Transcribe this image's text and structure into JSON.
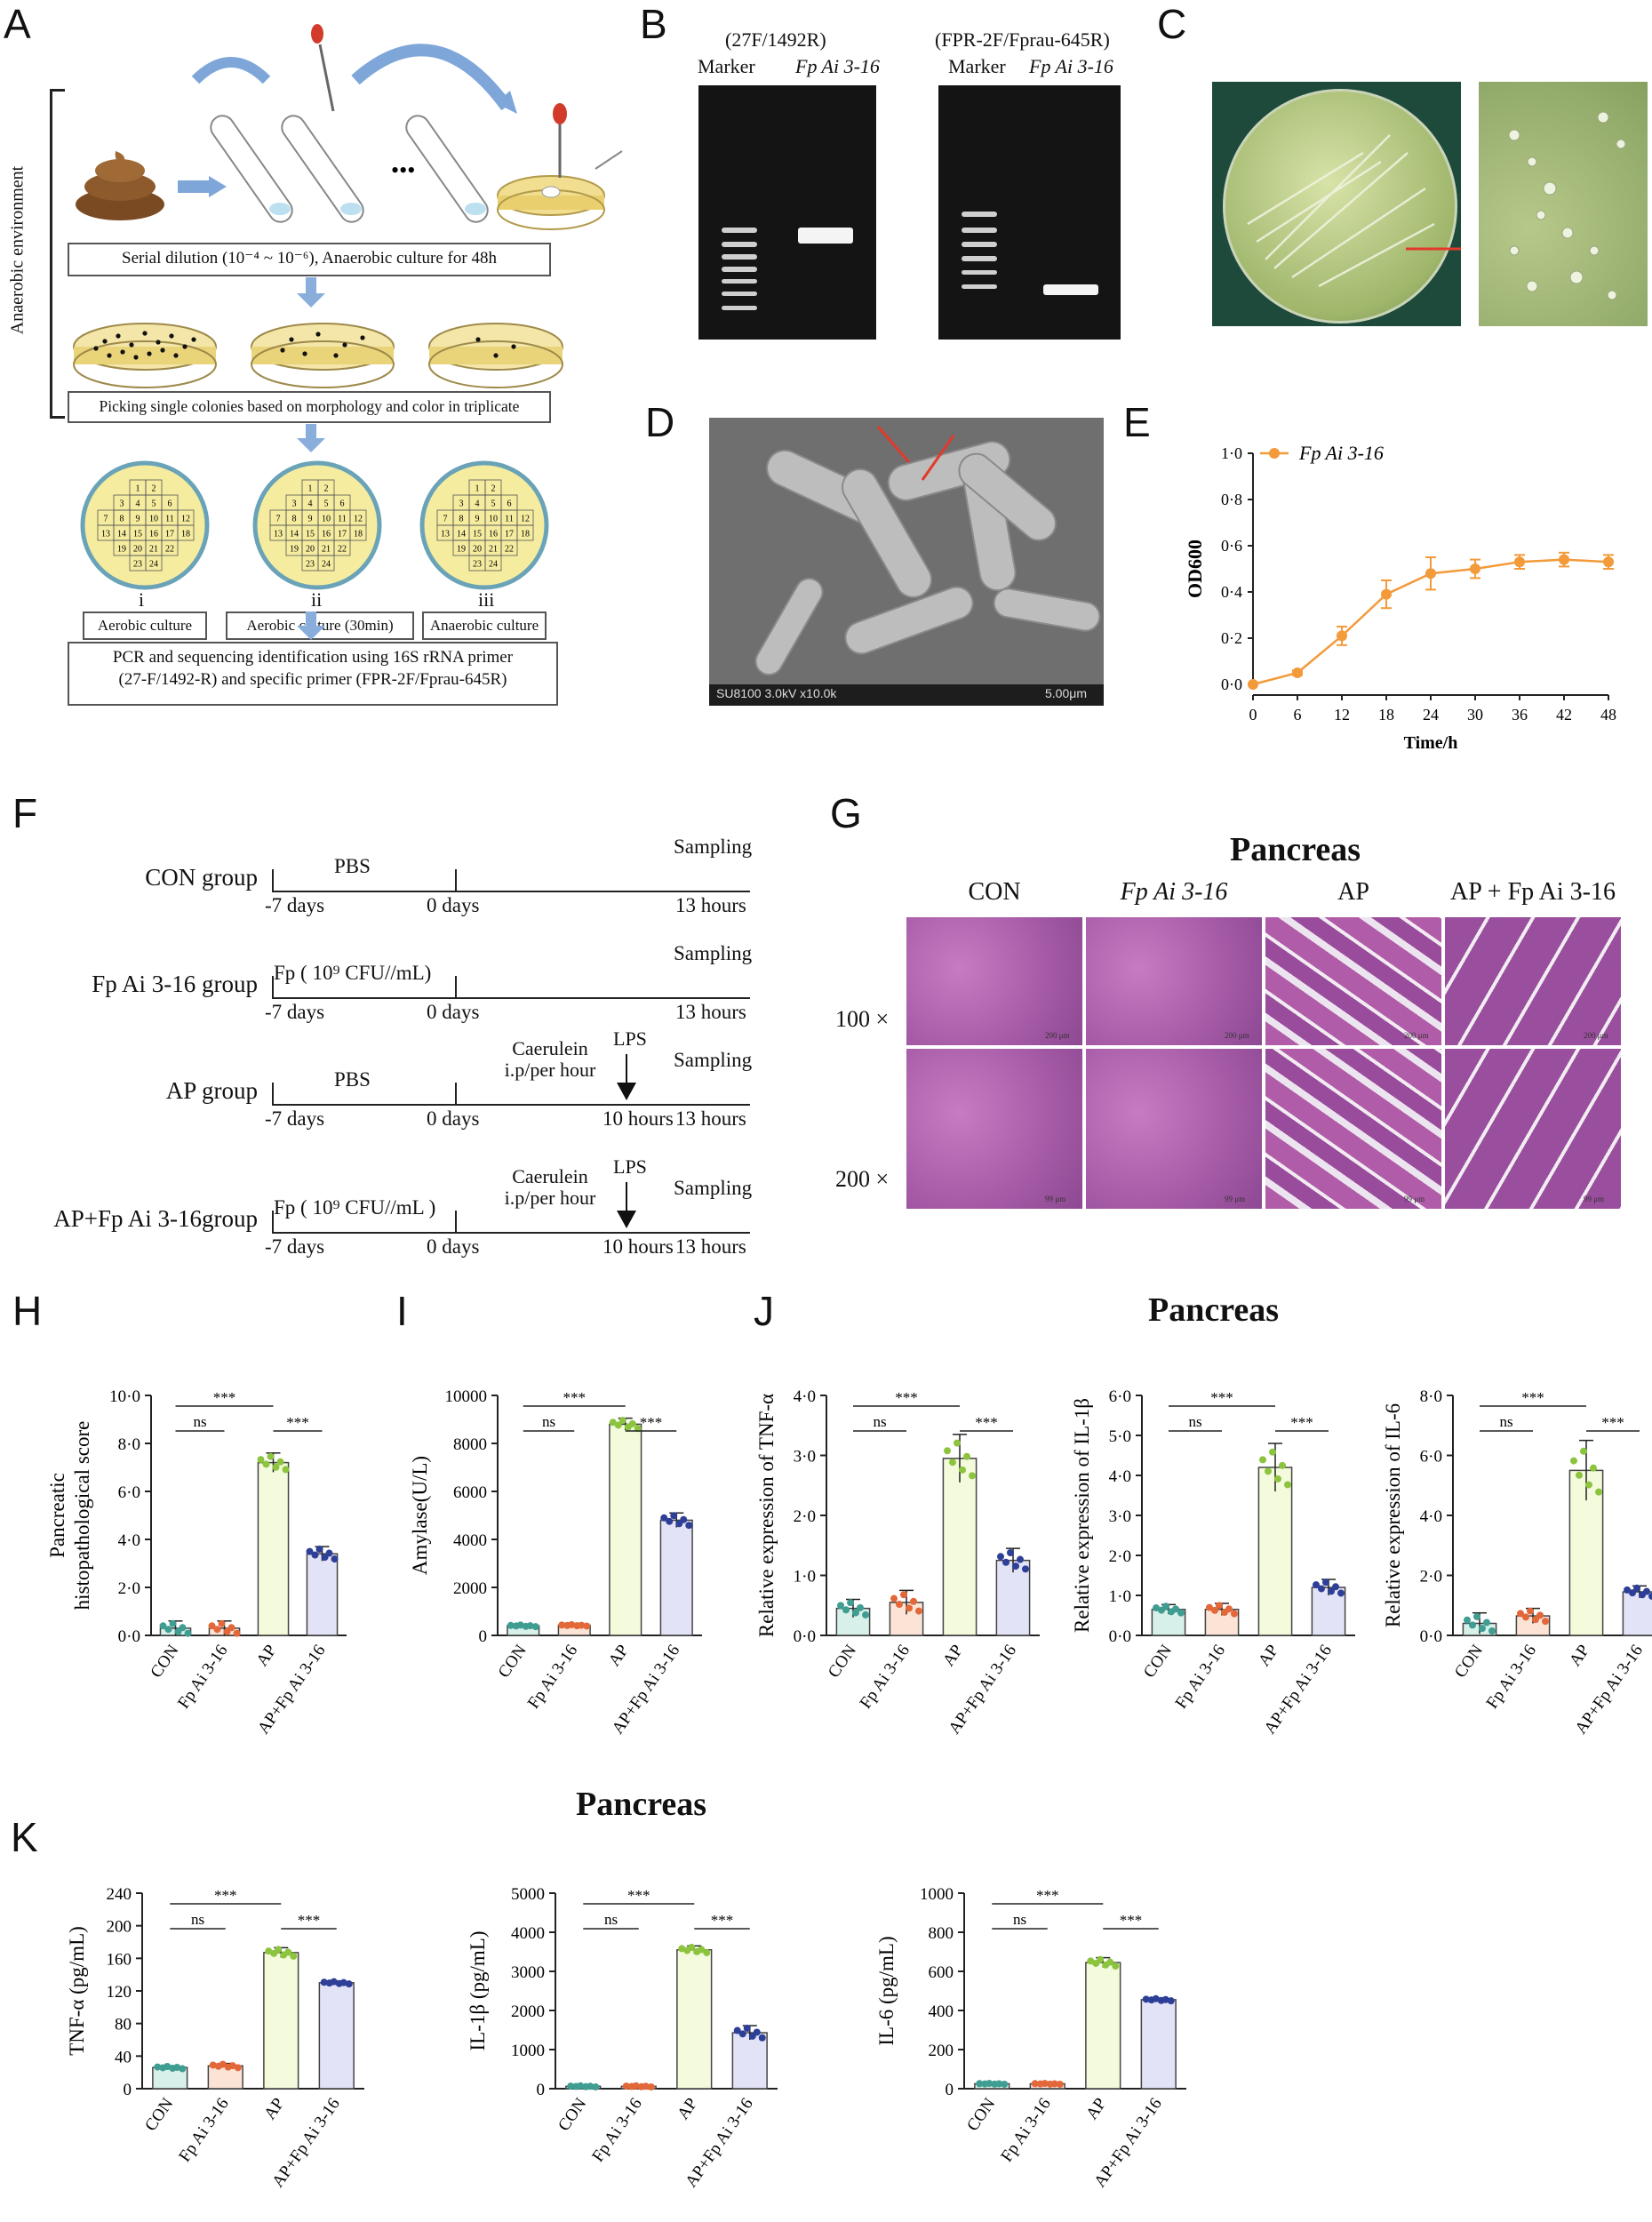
{
  "panel_labels": {
    "A": "A",
    "B": "B",
    "C": "C",
    "D": "D",
    "E": "E",
    "F": "F",
    "G": "G",
    "H": "H",
    "I": "I",
    "J": "J",
    "K": "K"
  },
  "panelA": {
    "side_label": "Anaerobic environment",
    "step1": "Serial dilution (10⁻⁴ ~ 10⁻⁶), Anaerobic culture for 48h",
    "step2": "Picking single colonies based on morphology and color in triplicate",
    "plates": [
      {
        "roman": "i",
        "label": "Aerobic culture"
      },
      {
        "roman": "ii",
        "label": "Aerobic culture (30min)"
      },
      {
        "roman": "iii",
        "label": "Anaerobic culture"
      }
    ],
    "grid_numbers": [
      "1",
      "2",
      "3",
      "4",
      "5",
      "6",
      "7",
      "8",
      "9",
      "10",
      "11",
      "12",
      "13",
      "14",
      "15",
      "16",
      "17",
      "18",
      "19",
      "20",
      "21",
      "22",
      "23",
      "24"
    ],
    "dots": "•••",
    "step3_line1": "PCR and sequencing identification using 16S rRNA primer",
    "step3_line2": "(27-F/1492-R) and specific primer (FPR-2F/Fprau-645R)"
  },
  "panelB": {
    "gel1_title": "(27F/1492R)",
    "gel2_title": "(FPR-2F/Fprau-645R)",
    "lane_marker": "Marker",
    "lane_sample": "Fp Ai 3-16"
  },
  "panelD": {
    "sem_caption": "SU8100 3.0kV x10.0k",
    "scale": "5.00μm"
  },
  "panelE": {
    "chart_data": {
      "type": "line",
      "legend": "Fp Ai 3-16",
      "xlabel": "Time/h",
      "ylabel": "OD600",
      "x": [
        0,
        6,
        12,
        18,
        24,
        30,
        36,
        42,
        48
      ],
      "y": [
        0.0,
        0.05,
        0.21,
        0.39,
        0.48,
        0.5,
        0.53,
        0.54,
        0.53
      ],
      "err": [
        0.0,
        0.01,
        0.04,
        0.06,
        0.07,
        0.04,
        0.03,
        0.03,
        0.03
      ],
      "xlim": [
        0,
        48
      ],
      "ylim": [
        0,
        1.0
      ],
      "yticks": [
        "0·0",
        "0·2",
        "0·4",
        "0·6",
        "0·8",
        "1·0"
      ],
      "xticks": [
        "0",
        "6",
        "12",
        "18",
        "24",
        "30",
        "36",
        "42",
        "48"
      ],
      "color": "#f39a3a"
    }
  },
  "panelF": {
    "groups": [
      {
        "name": "CON group",
        "pre": "PBS",
        "mid": "",
        "lps": "",
        "t0": "-7 days",
        "t1": "0 days",
        "t2": "",
        "t3": "13 hours",
        "sampling": "Sampling"
      },
      {
        "name": "Fp Ai 3-16 group",
        "pre": "Fp ( 10⁹ CFU//mL)",
        "mid": "",
        "lps": "",
        "t0": "-7 days",
        "t1": "0 days",
        "t2": "",
        "t3": "13 hours",
        "sampling": "Sampling"
      },
      {
        "name": "AP group",
        "pre": "PBS",
        "mid": "Caerulein i.p/per hour",
        "lps": "LPS",
        "t0": "-7 days",
        "t1": "0 days",
        "t2": "10 hours",
        "t3": "13 hours",
        "sampling": "Sampling"
      },
      {
        "name": "AP+Fp Ai 3-16group",
        "pre": "Fp ( 10⁹ CFU//mL )",
        "mid": "Caerulein i.p/per hour",
        "lps": "LPS",
        "t0": "-7 days",
        "t1": "0 days",
        "t2": "10 hours",
        "t3": "13 hours",
        "sampling": "Sampling"
      }
    ]
  },
  "panelG": {
    "title": "Pancreas",
    "columns": [
      "CON",
      "Fp Ai 3-16",
      "AP",
      "AP + Fp Ai 3-16"
    ],
    "rows": [
      "100 ×",
      "200 ×"
    ],
    "scale_100": "200 μm",
    "scale_200": "99 μm"
  },
  "panelJ_title": "Pancreas",
  "panelK_title": "Pancreas",
  "bar_categories": [
    "CON",
    "Fp Ai 3-16",
    "AP",
    "AP+Fp Ai 3-16"
  ],
  "sig": {
    "ns": "ns",
    "star": "***"
  },
  "colors": {
    "fills": [
      "#d7f0ea",
      "#fbe3d6",
      "#f3fbdc",
      "#e3e3f7"
    ],
    "dots": [
      "#3f9d91",
      "#e2683a",
      "#8cc43e",
      "#2d3f97"
    ]
  },
  "bar_charts": [
    {
      "id": "H",
      "type": "bar",
      "ylabel": "Pancreatic histopathological score",
      "ylabel_lines": [
        "Pancreatic",
        "histopathological score"
      ],
      "ylim": [
        0,
        10
      ],
      "yticks": [
        "0·0",
        "2·0",
        "4·0",
        "6·0",
        "8·0",
        "10·0"
      ],
      "values": [
        0.3,
        0.3,
        7.2,
        3.4
      ],
      "err": [
        0.3,
        0.3,
        0.4,
        0.3
      ]
    },
    {
      "id": "I",
      "type": "bar",
      "ylabel": "Amylase(U/L)",
      "ylim": [
        0,
        10000
      ],
      "yticks": [
        "0",
        "2000",
        "4000",
        "6000",
        "8000",
        "10000"
      ],
      "values": [
        400,
        420,
        8800,
        4800
      ],
      "err": [
        50,
        40,
        250,
        300
      ]
    },
    {
      "id": "J1",
      "type": "bar",
      "ylabel": "Relative expression of TNF-α",
      "ylim": [
        0,
        4
      ],
      "yticks": [
        "0·0",
        "1·0",
        "2·0",
        "3·0",
        "4·0"
      ],
      "values": [
        0.45,
        0.55,
        2.95,
        1.25
      ],
      "err": [
        0.15,
        0.2,
        0.4,
        0.2
      ]
    },
    {
      "id": "J2",
      "type": "bar",
      "ylabel": "Relative expression of IL-1β",
      "ylim": [
        0,
        6
      ],
      "yticks": [
        "0·0",
        "1·0",
        "2·0",
        "3·0",
        "4·0",
        "5·0",
        "6·0"
      ],
      "values": [
        0.65,
        0.65,
        4.2,
        1.2
      ],
      "err": [
        0.12,
        0.15,
        0.6,
        0.2
      ]
    },
    {
      "id": "J3",
      "type": "bar",
      "ylabel": "Relative expression of IL-6",
      "ylim": [
        0,
        8
      ],
      "yticks": [
        "0·0",
        "2·0",
        "4·0",
        "6·0",
        "8·0"
      ],
      "values": [
        0.4,
        0.65,
        5.5,
        1.45
      ],
      "err": [
        0.35,
        0.25,
        1.0,
        0.2
      ]
    },
    {
      "id": "K1",
      "type": "bar",
      "ylabel": "TNF-α (pg/mL)",
      "ylim": [
        0,
        240
      ],
      "yticks": [
        "0",
        "40",
        "80",
        "120",
        "160",
        "200",
        "240"
      ],
      "values": [
        26,
        28,
        167,
        130
      ],
      "err": [
        2,
        3,
        6,
        2
      ]
    },
    {
      "id": "K2",
      "type": "bar",
      "ylabel": "IL-1β (pg/mL)",
      "ylim": [
        0,
        5000
      ],
      "yticks": [
        "0",
        "1000",
        "2000",
        "3000",
        "4000",
        "5000"
      ],
      "values": [
        60,
        60,
        3550,
        1430
      ],
      "err": [
        20,
        20,
        100,
        180
      ]
    },
    {
      "id": "K3",
      "type": "bar",
      "ylabel": "IL-6 (pg/mL)",
      "ylim": [
        0,
        1000
      ],
      "yticks": [
        "0",
        "200",
        "400",
        "600",
        "800",
        "1000"
      ],
      "values": [
        25,
        25,
        645,
        455
      ],
      "err": [
        3,
        3,
        25,
        8
      ]
    }
  ]
}
